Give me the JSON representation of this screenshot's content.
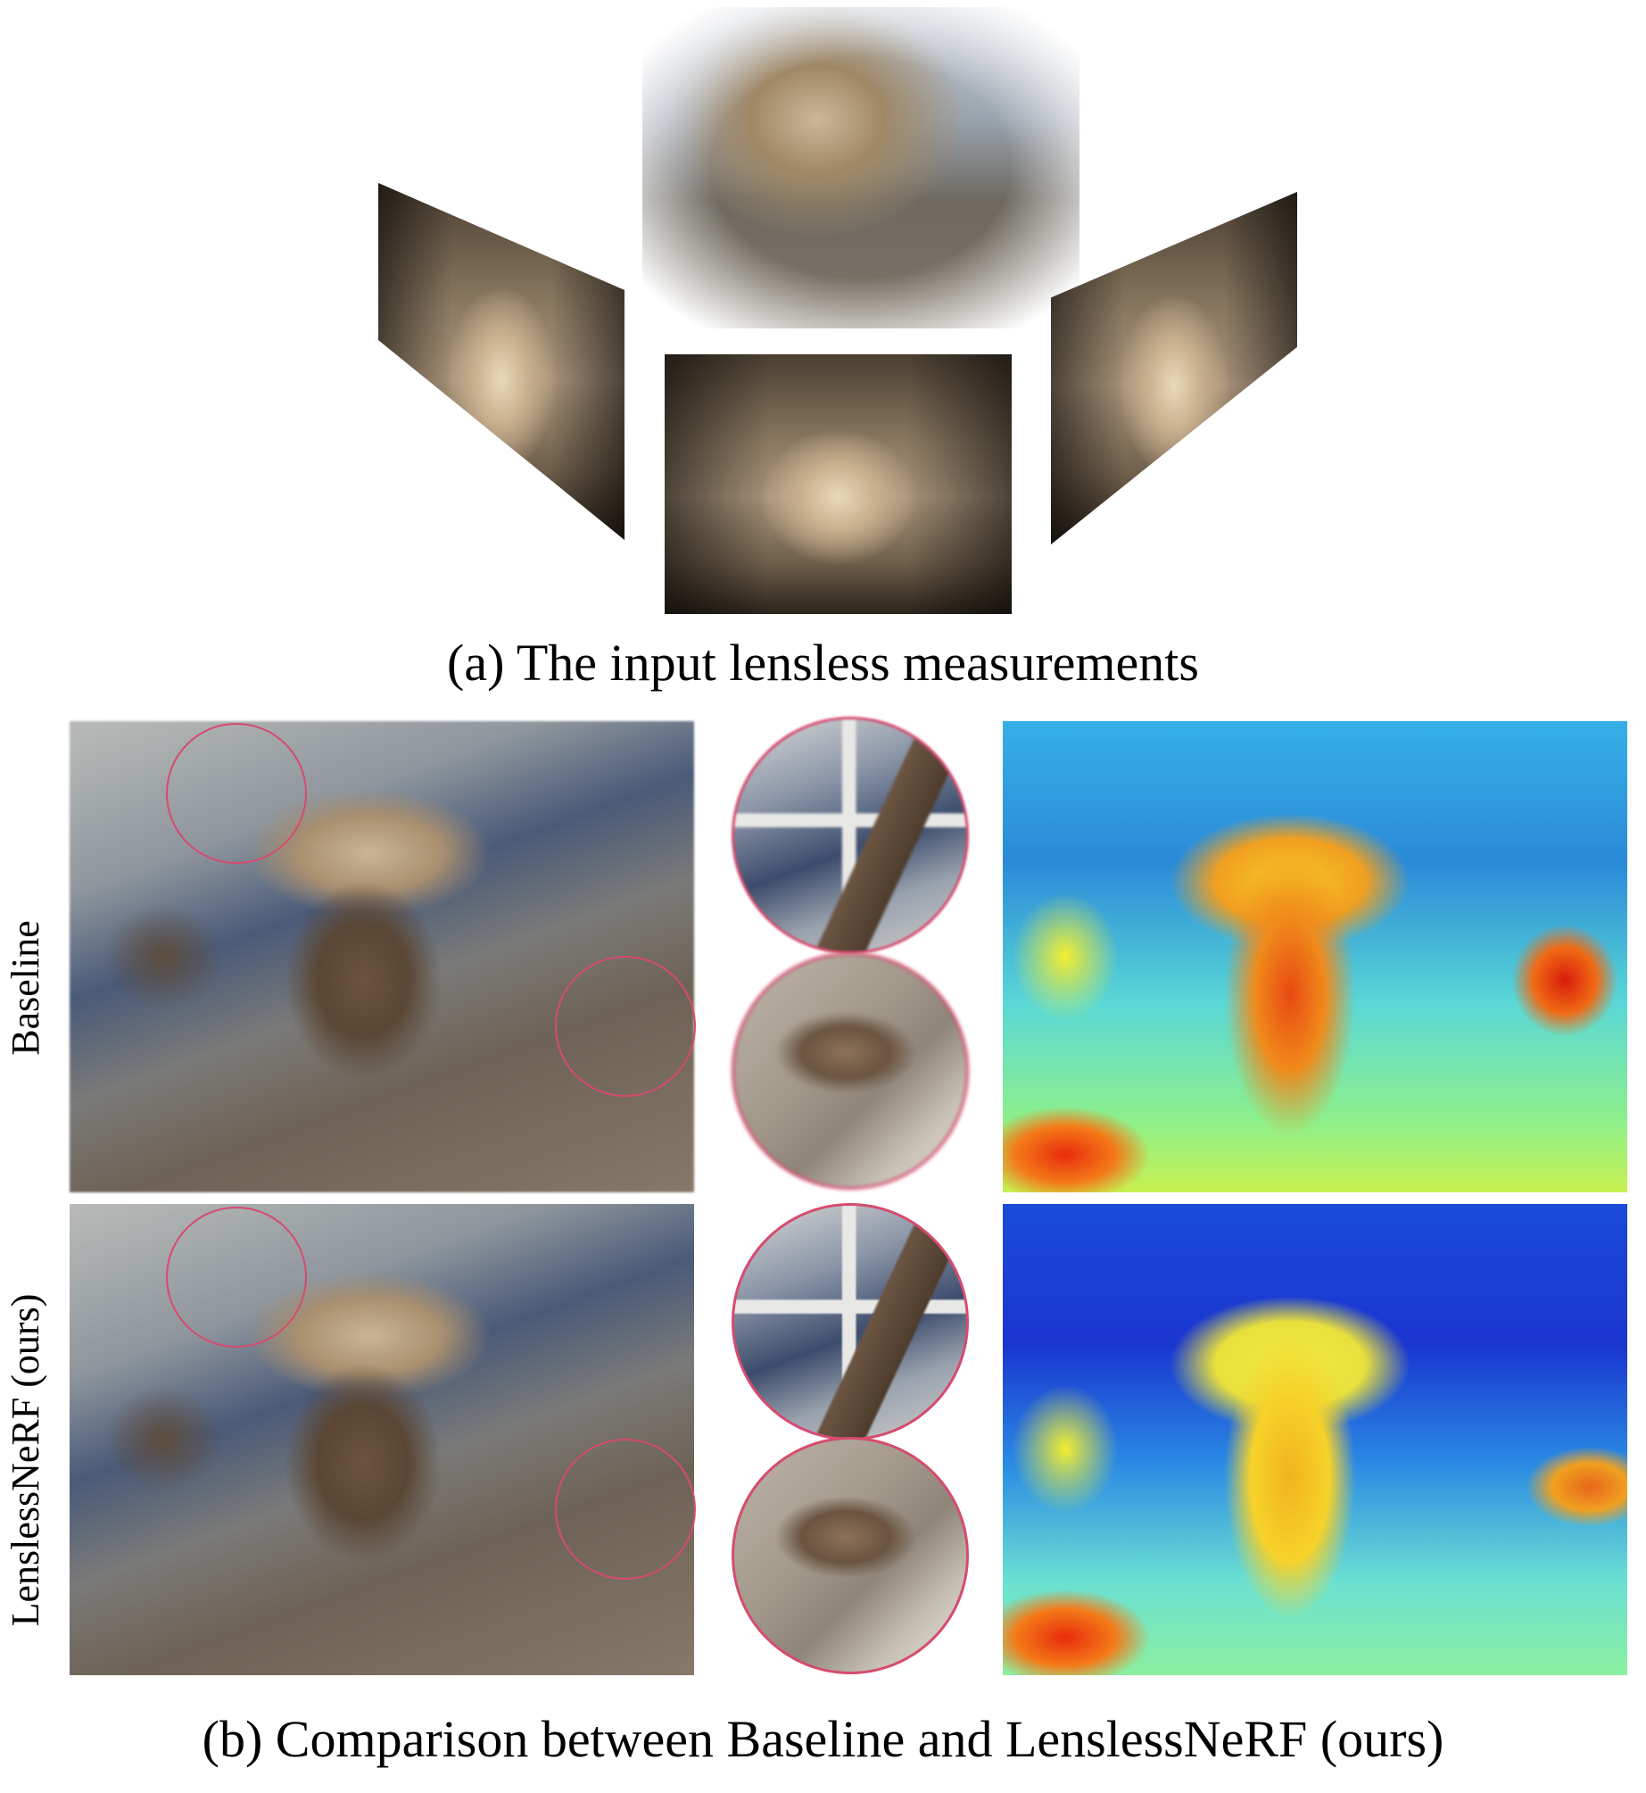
{
  "figure": {
    "panel_a": {
      "caption": "(a) The input lensless measurements"
    },
    "panel_b": {
      "caption": "(b) Comparison between Baseline and LenslessNeRF (ours)",
      "rows": [
        {
          "label": "Baseline"
        },
        {
          "label": "LenslessNeRF (ours)"
        }
      ],
      "highlight_color": "#d64b6e"
    }
  }
}
